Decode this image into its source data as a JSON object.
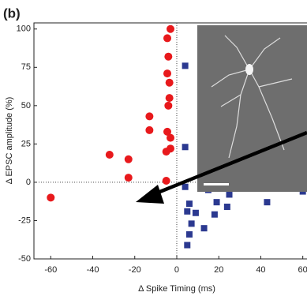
{
  "chart_data": {
    "type": "scatter",
    "panel_label": "(b)",
    "x_label": "Δ Spike Timing (ms)",
    "y_label": "Δ EPSC amplitude (%)",
    "xlim": [
      -68,
      62
    ],
    "ylim": [
      -50,
      104
    ],
    "xticks": [
      -60,
      -40,
      -20,
      0,
      20,
      40,
      60
    ],
    "yticks": [
      -50,
      -25,
      0,
      25,
      50,
      75,
      100
    ],
    "zero_lines": true,
    "series": [
      {
        "color": "#e8191c",
        "marker": "circle",
        "x": [
          -3,
          -4.5,
          -4,
          -4.5,
          -3.5,
          -3.5,
          -4,
          -13,
          -13,
          -4.5,
          -3,
          -3,
          -5,
          -23,
          -32,
          -23,
          -5,
          -60
        ],
        "values": [
          100,
          94,
          82,
          71,
          65,
          55,
          50,
          43,
          34,
          33,
          29,
          22,
          20,
          15,
          18,
          3,
          1,
          -10
        ]
      },
      {
        "color": "#2b3990",
        "marker": "square",
        "x": [
          4,
          4,
          4,
          15,
          25,
          19,
          6,
          5,
          9,
          18,
          24,
          7,
          13,
          6,
          5,
          43,
          60,
          60
        ],
        "values": [
          76,
          23,
          -3,
          -5,
          -8,
          -13,
          -14,
          -19,
          -20,
          -21,
          -16,
          -27,
          -30,
          -34,
          -41,
          -13,
          -2,
          -6
        ]
      }
    ]
  }
}
